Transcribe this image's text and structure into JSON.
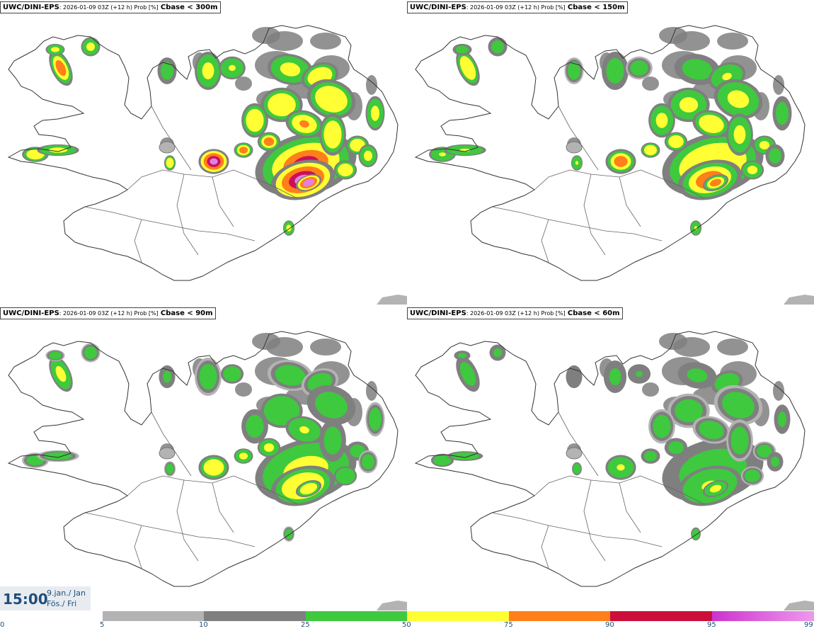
{
  "panels": [
    {
      "model": "UWC/DINI-EPS",
      "meta": ": 2026-01-09 03Z (+12 h) Prob [%]",
      "threshold": "Cbase < 300m",
      "intensity": 1.0
    },
    {
      "model": "UWC/DINI-EPS",
      "meta": ": 2026-01-09 03Z (+12 h) Prob [%]",
      "threshold": "Cbase < 150m",
      "intensity": 0.82
    },
    {
      "model": "UWC/DINI-EPS",
      "meta": ": 2026-01-09 03Z (+12 h) Prob [%]",
      "threshold": "Cbase < 90m",
      "intensity": 0.66
    },
    {
      "model": "UWC/DINI-EPS",
      "meta": ": 2026-01-09 03Z (+12 h) Prob [%]",
      "threshold": "Cbase < 60m",
      "intensity": 0.52
    }
  ],
  "time": {
    "clock": "15:00",
    "date_line1": "9.jan./ Jan",
    "date_line2": "Fös./ Fri"
  },
  "legend": {
    "ticks": [
      "0",
      "5",
      "10",
      "25",
      "50",
      "75",
      "90",
      "95",
      "99"
    ],
    "colors": [
      "#b3b3b3",
      "#7f7f7f",
      "#3ec93e",
      "#ffff33",
      "#ff7f1a",
      "#cc0f3a",
      "#cc33cc",
      "#ee99ee"
    ]
  }
}
